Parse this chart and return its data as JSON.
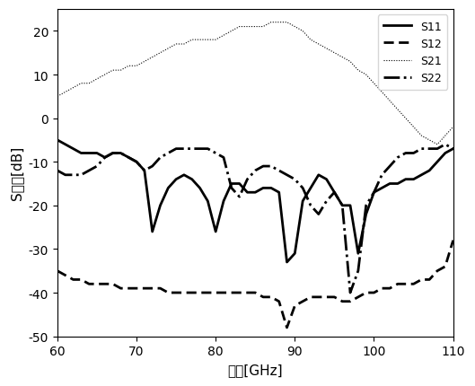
{
  "title": "",
  "xlabel": "频率[GHz]",
  "ylabel": "S参数[dB]",
  "xlim": [
    60,
    110
  ],
  "ylim": [
    -50,
    25
  ],
  "xticks": [
    60,
    70,
    80,
    90,
    100,
    110
  ],
  "yticks": [
    -50,
    -40,
    -30,
    -20,
    -10,
    0,
    10,
    20
  ],
  "legend": [
    "S11",
    "S12",
    "S21",
    "S22"
  ],
  "background_color": "#ffffff",
  "S11": {
    "x": [
      60,
      61,
      62,
      63,
      64,
      65,
      66,
      67,
      68,
      69,
      70,
      71,
      72,
      73,
      74,
      75,
      76,
      77,
      78,
      79,
      80,
      81,
      82,
      83,
      84,
      85,
      86,
      87,
      88,
      89,
      90,
      91,
      92,
      93,
      94,
      95,
      96,
      97,
      98,
      99,
      100,
      101,
      102,
      103,
      104,
      105,
      106,
      107,
      108,
      109,
      110
    ],
    "y": [
      -5,
      -6,
      -7,
      -8,
      -8,
      -8,
      -9,
      -8,
      -8,
      -9,
      -10,
      -12,
      -26,
      -20,
      -16,
      -14,
      -13,
      -14,
      -16,
      -19,
      -26,
      -19,
      -15,
      -15,
      -17,
      -17,
      -16,
      -16,
      -17,
      -33,
      -31,
      -19,
      -16,
      -13,
      -14,
      -17,
      -20,
      -20,
      -31,
      -22,
      -17,
      -16,
      -15,
      -15,
      -14,
      -14,
      -13,
      -12,
      -10,
      -8,
      -7
    ]
  },
  "S12": {
    "x": [
      60,
      61,
      62,
      63,
      64,
      65,
      66,
      67,
      68,
      69,
      70,
      71,
      72,
      73,
      74,
      75,
      76,
      77,
      78,
      79,
      80,
      81,
      82,
      83,
      84,
      85,
      86,
      87,
      88,
      89,
      90,
      91,
      92,
      93,
      94,
      95,
      96,
      97,
      98,
      99,
      100,
      101,
      102,
      103,
      104,
      105,
      106,
      107,
      108,
      109,
      110
    ],
    "y": [
      -35,
      -36,
      -37,
      -37,
      -38,
      -38,
      -38,
      -38,
      -39,
      -39,
      -39,
      -39,
      -39,
      -39,
      -40,
      -40,
      -40,
      -40,
      -40,
      -40,
      -40,
      -40,
      -40,
      -40,
      -40,
      -40,
      -41,
      -41,
      -42,
      -48,
      -43,
      -42,
      -41,
      -41,
      -41,
      -41,
      -42,
      -42,
      -41,
      -40,
      -40,
      -39,
      -39,
      -38,
      -38,
      -38,
      -37,
      -37,
      -35,
      -34,
      -28
    ]
  },
  "S21": {
    "x": [
      60,
      61,
      62,
      63,
      64,
      65,
      66,
      67,
      68,
      69,
      70,
      71,
      72,
      73,
      74,
      75,
      76,
      77,
      78,
      79,
      80,
      81,
      82,
      83,
      84,
      85,
      86,
      87,
      88,
      89,
      90,
      91,
      92,
      93,
      94,
      95,
      96,
      97,
      98,
      99,
      100,
      101,
      102,
      103,
      104,
      105,
      106,
      107,
      108,
      109,
      110
    ],
    "y": [
      5,
      6,
      7,
      8,
      8,
      9,
      10,
      11,
      11,
      12,
      12,
      13,
      14,
      15,
      16,
      17,
      17,
      18,
      18,
      18,
      18,
      19,
      20,
      21,
      21,
      21,
      21,
      22,
      22,
      22,
      21,
      20,
      18,
      17,
      16,
      15,
      14,
      13,
      11,
      10,
      8,
      6,
      4,
      2,
      0,
      -2,
      -4,
      -5,
      -6,
      -4,
      -2
    ]
  },
  "S22": {
    "x": [
      60,
      61,
      62,
      63,
      64,
      65,
      66,
      67,
      68,
      69,
      70,
      71,
      72,
      73,
      74,
      75,
      76,
      77,
      78,
      79,
      80,
      81,
      82,
      83,
      84,
      85,
      86,
      87,
      88,
      89,
      90,
      91,
      92,
      93,
      94,
      95,
      96,
      97,
      98,
      99,
      100,
      101,
      102,
      103,
      104,
      105,
      106,
      107,
      108,
      109,
      110
    ],
    "y": [
      -12,
      -13,
      -13,
      -13,
      -12,
      -11,
      -9,
      -8,
      -8,
      -9,
      -10,
      -12,
      -11,
      -9,
      -8,
      -7,
      -7,
      -7,
      -7,
      -7,
      -8,
      -9,
      -16,
      -18,
      -14,
      -12,
      -11,
      -11,
      -12,
      -13,
      -14,
      -16,
      -20,
      -22,
      -19,
      -17,
      -20,
      -40,
      -35,
      -20,
      -17,
      -13,
      -11,
      -9,
      -8,
      -8,
      -7,
      -7,
      -7,
      -6,
      -7
    ]
  }
}
